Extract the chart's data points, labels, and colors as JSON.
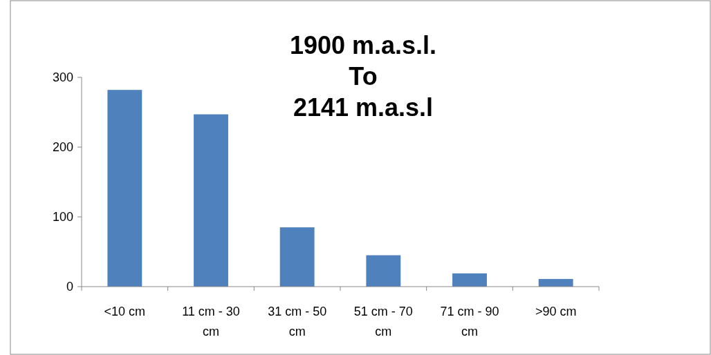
{
  "chart_data": {
    "type": "bar",
    "title": "1900 m.a.s.l.\nTo\n2141 m.a.s.l",
    "categories": [
      "<10 cm",
      "11 cm - 30 cm",
      "31 cm - 50 cm",
      "51 cm - 70 cm",
      "71 cm - 90 cm",
      ">90 cm"
    ],
    "values": [
      282,
      247,
      85,
      45,
      19,
      11
    ],
    "color": "#4f81bd",
    "ylim": [
      0,
      300
    ],
    "yticks": [
      0,
      100,
      200,
      300
    ],
    "grid": false
  }
}
